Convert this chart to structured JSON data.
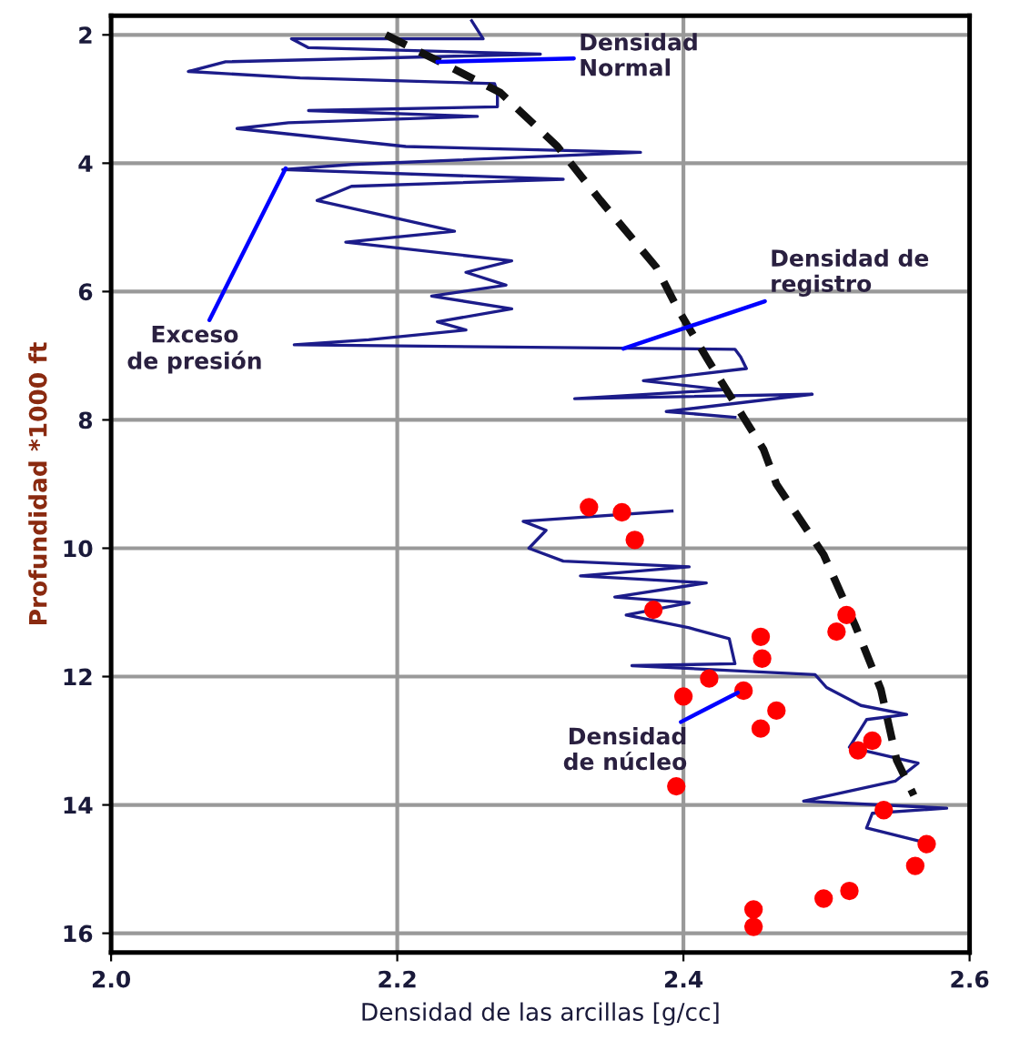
{
  "chart_data": {
    "type": "line",
    "xlabel": "Densidad de las arcillas [g/cc]",
    "ylabel": "Profundidad *1000 ft",
    "xlim": [
      2.0,
      2.6
    ],
    "ylim": [
      16.3,
      1.7
    ],
    "xticks": [
      {
        "value": 2.0,
        "label": "2.0"
      },
      {
        "value": 2.2,
        "label": "2.2"
      },
      {
        "value": 2.4,
        "label": "2.4"
      },
      {
        "value": 2.6,
        "label": "2.6"
      }
    ],
    "yticks": [
      2,
      4,
      6,
      8,
      10,
      12,
      14,
      16
    ],
    "grid": true,
    "series": [
      {
        "type": "line",
        "color": "#1c1c8a",
        "line_style": "solid",
        "marker": "none",
        "x": [
          2.252,
          2.26,
          2.126,
          2.138,
          2.3,
          2.08,
          2.054,
          2.132,
          2.268,
          2.27,
          2.27,
          2.138,
          2.256,
          2.124,
          2.088,
          2.206,
          2.37,
          2.168,
          2.12,
          2.316,
          2.168,
          2.144,
          2.24,
          2.164,
          2.28,
          2.248,
          2.276,
          2.224,
          2.28,
          2.228,
          2.248,
          2.18,
          2.128,
          2.436,
          2.44,
          2.444,
          2.372,
          2.428,
          2.324,
          2.49,
          2.388,
          2.436,
          null,
          2.392,
          2.288,
          2.304,
          2.292,
          2.316,
          2.404,
          2.328,
          2.416,
          2.352,
          2.404,
          2.36,
          2.404,
          2.432,
          2.436,
          2.364,
          2.492,
          2.5,
          2.524,
          2.556,
          2.528,
          2.516,
          2.564,
          2.548,
          2.484,
          2.584,
          2.532,
          2.528,
          2.564
        ],
        "values": [
          1.78,
          2.06,
          2.06,
          2.2,
          2.3,
          2.42,
          2.57,
          2.67,
          2.76,
          2.9,
          3.12,
          3.18,
          3.27,
          3.37,
          3.46,
          3.74,
          3.83,
          4.02,
          4.1,
          4.25,
          4.36,
          4.58,
          5.06,
          5.23,
          5.52,
          5.7,
          5.9,
          6.07,
          6.27,
          6.47,
          6.6,
          6.75,
          6.83,
          6.9,
          7.02,
          7.2,
          7.39,
          7.53,
          7.67,
          7.6,
          7.87,
          7.96,
          null,
          9.42,
          9.58,
          9.72,
          10.0,
          10.2,
          10.29,
          10.43,
          10.54,
          10.76,
          10.85,
          11.04,
          11.24,
          11.41,
          11.8,
          11.83,
          11.97,
          12.17,
          12.45,
          12.59,
          12.67,
          13.1,
          13.35,
          13.63,
          13.94,
          14.05,
          14.13,
          14.36,
          14.56
        ]
      },
      {
        "type": "line",
        "color": "#111111",
        "line_style": "dashed",
        "marker": "none",
        "x": [
          2.192,
          2.228,
          2.272,
          2.312,
          2.342,
          2.381,
          2.396,
          2.417,
          2.442,
          2.456,
          2.465,
          2.498,
          2.52,
          2.538,
          2.549,
          2.561
        ],
        "values": [
          2.0,
          2.4,
          2.9,
          3.74,
          4.58,
          5.62,
          6.27,
          7.06,
          7.96,
          8.46,
          9.0,
          10.1,
          11.2,
          12.2,
          13.3,
          13.85
        ]
      },
      {
        "type": "scatter",
        "color": "#ff0000",
        "marker": "circle",
        "x": [
          2.334,
          2.357,
          2.366,
          2.379,
          2.454,
          2.455,
          2.507,
          2.514,
          2.418,
          2.4,
          2.442,
          2.465,
          2.454,
          2.522,
          2.532,
          2.395,
          2.54,
          2.57,
          2.562,
          2.498,
          2.516,
          2.449,
          2.449
        ],
        "values": [
          9.36,
          9.44,
          9.87,
          10.96,
          11.38,
          11.72,
          11.3,
          11.04,
          12.03,
          12.31,
          12.22,
          12.53,
          12.81,
          13.15,
          13.0,
          13.71,
          14.08,
          14.61,
          14.95,
          15.46,
          15.34,
          15.63,
          15.9
        ]
      }
    ],
    "annotations": [
      {
        "text": "Densidad\nNormal",
        "x": 2.228,
        "y": 2.42
      },
      {
        "text": "Exceso\nde presión",
        "x": 2.122,
        "y": 4.08
      },
      {
        "text": "Densidad de\nregistro",
        "x": 2.358,
        "y": 6.89
      },
      {
        "text": "Densidad\nde núcleo",
        "x": 2.438,
        "y": 12.25
      }
    ]
  }
}
